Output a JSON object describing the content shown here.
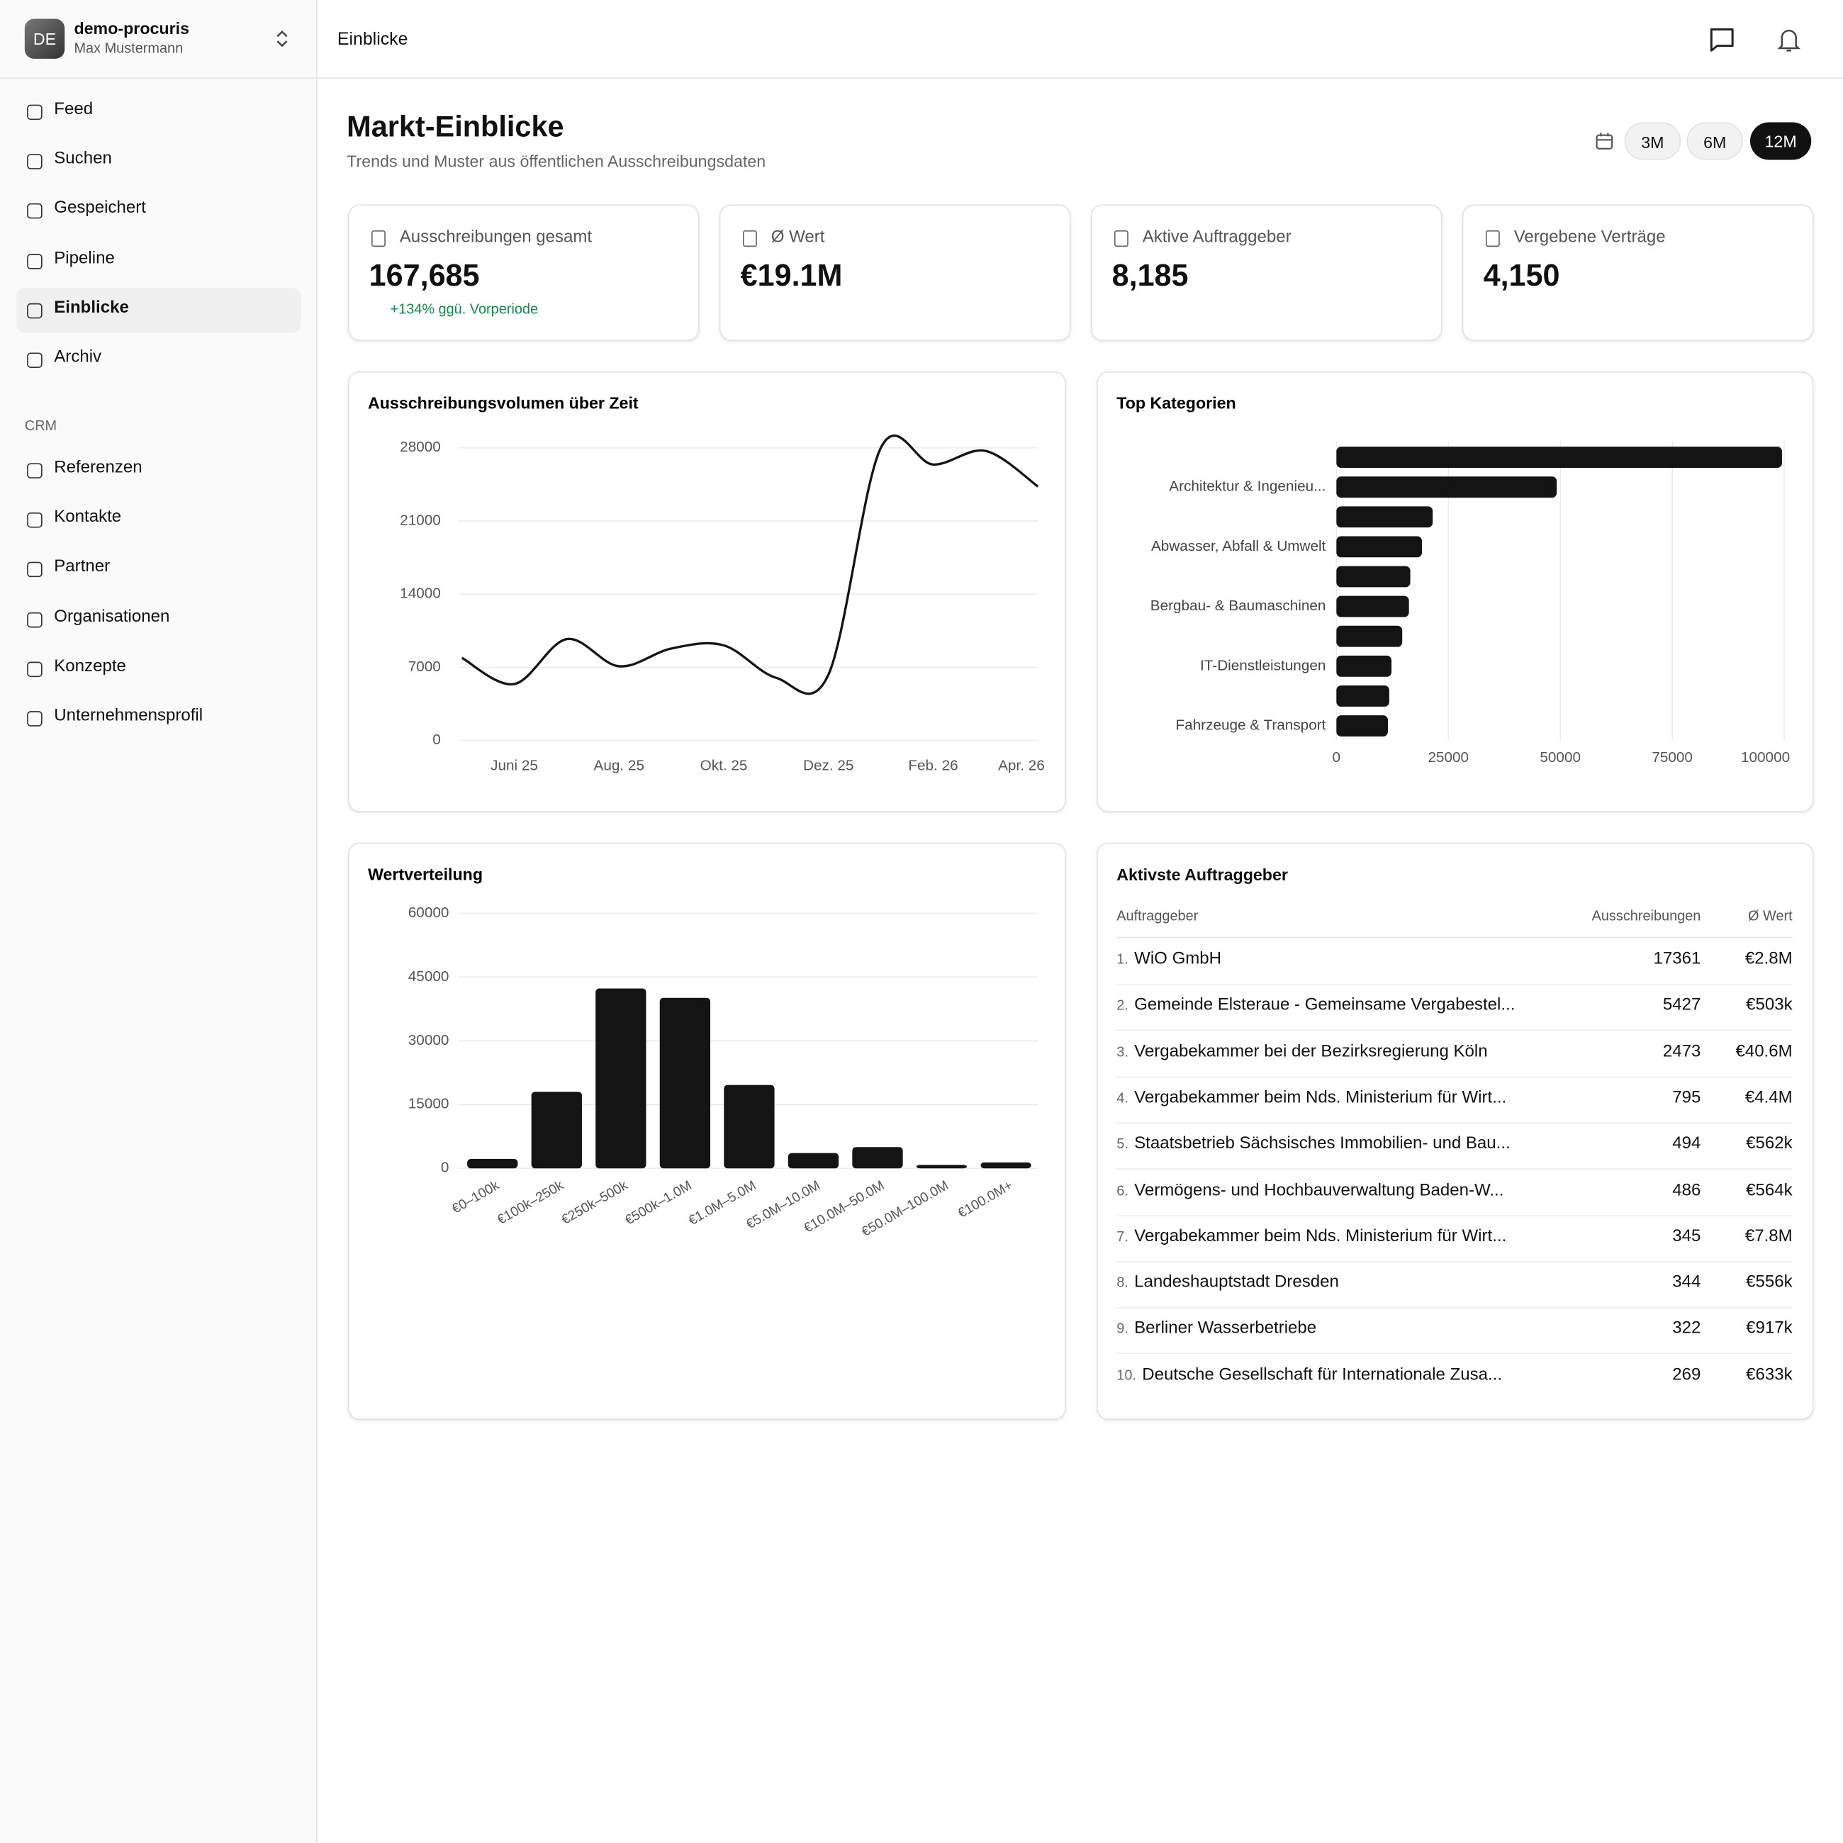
{
  "workspace": {
    "initials": "DE",
    "name": "demo-procuris",
    "user": "Max Mustermann"
  },
  "nav": {
    "items": [
      "Feed",
      "Suchen",
      "Gespeichert",
      "Pipeline",
      "Einblicke",
      "Archiv"
    ],
    "active": "Einblicke",
    "crm_title": "CRM",
    "crm_items": [
      "Referenzen",
      "Kontakte",
      "Partner",
      "Organisationen",
      "Konzepte",
      "Unternehmensprofil"
    ]
  },
  "header": {
    "breadcrumb": "Einblicke"
  },
  "page": {
    "title": "Markt-Einblicke",
    "subtitle": "Trends und Muster aus öffentlichen Ausschreibungsdaten",
    "ranges": [
      "3M",
      "6M",
      "12M"
    ],
    "active_range": "12M"
  },
  "kpis": [
    {
      "label": "Ausschreibungen gesamt",
      "value": "167,685",
      "change": "+134% ggü. Vorperiode"
    },
    {
      "label": "Ø Wert",
      "value": "€19.1M"
    },
    {
      "label": "Aktive Auftraggeber",
      "value": "8,185"
    },
    {
      "label": "Vergebene Verträge",
      "value": "4,150"
    }
  ],
  "chart_data": [
    {
      "type": "line",
      "title": "Ausschreibungsvolumen über Zeit",
      "categories": [
        null,
        "Juni 25",
        null,
        "Aug. 25",
        null,
        "Okt. 25",
        null,
        "Dez. 25",
        null,
        "Feb. 26",
        null,
        "Apr. 26"
      ],
      "series": [
        {
          "color": "#141414",
          "values": [
            7900,
            5400,
            9700,
            7100,
            8800,
            9100,
            6000,
            6300,
            28000,
            26400,
            27700,
            24300
          ]
        }
      ],
      "ylim": [
        0,
        28000
      ],
      "yticks": [
        0,
        7000,
        14000,
        21000,
        28000
      ],
      "grid": true
    },
    {
      "type": "hbar",
      "title": "Top Kategorien",
      "categories": [
        null,
        "Architektur & Ingenieu...",
        null,
        "Abwasser, Abfall & Umwelt",
        null,
        "Bergbau- & Baumaschinen",
        null,
        "IT-Dienstleistungen",
        null,
        "Fahrzeuge & Transport"
      ],
      "values": [
        99500,
        49200,
        21500,
        19100,
        16500,
        16200,
        14700,
        12300,
        11800,
        11500
      ],
      "color": "#141414",
      "xlim": [
        0,
        100000
      ],
      "xticks": [
        0,
        25000,
        50000,
        75000,
        100000
      ],
      "grid": true
    },
    {
      "type": "bar",
      "title": "Wertverteilung",
      "categories": [
        "€0–100k",
        "€100k–250k",
        "€250k–500k",
        "€500k–1.0M",
        "€1.0M–5.0M",
        "€5.0M–10.0M",
        "€10.0M–50.0M",
        "€50.0M–100.0M",
        "€100.0M+"
      ],
      "values": [
        2200,
        18000,
        42300,
        40100,
        19600,
        3600,
        5000,
        800,
        1400
      ],
      "color": "#141414",
      "ylim": [
        0,
        60000
      ],
      "yticks": [
        0,
        15000,
        30000,
        45000,
        60000
      ],
      "grid": true
    }
  ],
  "table": {
    "title": "Aktivste Auftraggeber",
    "columns": [
      "Auftraggeber",
      "Ausschreibungen",
      "Ø Wert"
    ],
    "rows": [
      [
        "1.",
        "WiO GmbH",
        17361,
        "€2.8M"
      ],
      [
        "2.",
        "Gemeinde Elsteraue - Gemeinsame Vergabestel...",
        5427,
        "€503k"
      ],
      [
        "3.",
        "Vergabekammer bei der Bezirksregierung Köln",
        2473,
        "€40.6M"
      ],
      [
        "4.",
        "Vergabekammer beim Nds. Ministerium für Wirt...",
        795,
        "€4.4M"
      ],
      [
        "5.",
        "Staatsbetrieb Sächsisches Immobilien- und Bau...",
        494,
        "€562k"
      ],
      [
        "6.",
        "Vermögens- und Hochbauverwaltung Baden-W...",
        486,
        "€564k"
      ],
      [
        "7.",
        "Vergabekammer beim Nds. Ministerium für Wirt...",
        345,
        "€7.8M"
      ],
      [
        "8.",
        "Landeshauptstadt Dresden",
        344,
        "€556k"
      ],
      [
        "9.",
        "Berliner Wasserbetriebe",
        322,
        "€917k"
      ],
      [
        "10.",
        "Deutsche Gesellschaft für Internationale Zusa...",
        269,
        "€633k"
      ]
    ]
  }
}
